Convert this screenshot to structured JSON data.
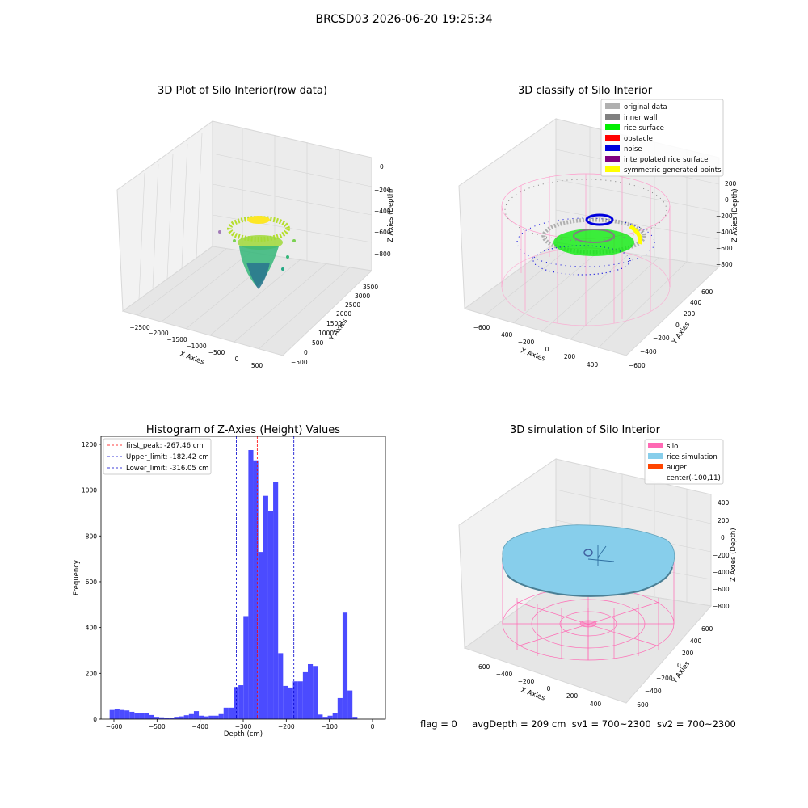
{
  "figure": {
    "suptitle": "BRCSD03 2026-06-20 19:25:34",
    "status_line": {
      "flag": "flag = 0",
      "avg_depth": "avgDepth = 209 cm",
      "sv1": "sv1 = 700~2300",
      "sv2": "sv2 = 700~2300"
    }
  },
  "chart_data": [
    {
      "id": "raw-3d",
      "type": "scatter",
      "title": "3D Plot of Silo Interior(row data)",
      "xlabel": "X Axies",
      "ylabel": "Y Axies",
      "zlabel": "Z Axies (Depth)",
      "x_ticks": [
        "−2500",
        "−2000",
        "−1500",
        "−1000",
        "−500",
        "0",
        "500"
      ],
      "y_ticks": [
        "−500",
        "0",
        "500",
        "1000",
        "1500",
        "2000",
        "2500",
        "3000",
        "3500"
      ],
      "z_ticks": [
        "0",
        "−200",
        "−400",
        "−600",
        "−800"
      ],
      "colormap": [
        "#440154",
        "#31688e",
        "#35b779",
        "#b5de2b",
        "#fde725"
      ]
    },
    {
      "id": "classify-3d",
      "type": "scatter",
      "title": "3D classify of Silo Interior",
      "xlabel": "X Axies",
      "ylabel": "Y Axies",
      "zlabel": "Z Axies (Depth)",
      "x_ticks": [
        "−600",
        "−400",
        "−200",
        "0",
        "200",
        "400"
      ],
      "y_ticks": [
        "−600",
        "−400",
        "−200",
        "0",
        "200",
        "400",
        "600"
      ],
      "z_ticks": [
        "200",
        "0",
        "−200",
        "−400",
        "−600",
        "−800"
      ],
      "legend_position": "top-right",
      "legend": [
        {
          "label": "original data",
          "color": "#b0b0b0"
        },
        {
          "label": "inner wall",
          "color": "#808080"
        },
        {
          "label": "rice surface",
          "color": "#00ee00"
        },
        {
          "label": "obstacle",
          "color": "#ff0000"
        },
        {
          "label": "noise",
          "color": "#0000dd"
        },
        {
          "label": "interpolated rice surface",
          "color": "#800080"
        },
        {
          "label": "symmetric generated points",
          "color": "#ffff00"
        }
      ],
      "wall_color": "#ff9acb"
    },
    {
      "id": "histogram",
      "type": "bar",
      "title": "Histogram of Z-Axies (Height) Values",
      "xlabel": "Depth (cm)",
      "ylabel": "Frequency",
      "xlim": [
        -630,
        30
      ],
      "ylim": [
        0,
        1235
      ],
      "x_ticks": [
        -600,
        -500,
        -400,
        -300,
        -200,
        -100,
        0
      ],
      "y_ticks": [
        0,
        200,
        400,
        600,
        800,
        1000,
        1200
      ],
      "bin_start": -610,
      "bin_width": 11.5,
      "bar_color": "#4b4bff",
      "values": [
        40,
        45,
        40,
        38,
        32,
        25,
        25,
        25,
        18,
        10,
        8,
        6,
        6,
        10,
        12,
        17,
        22,
        35,
        15,
        12,
        15,
        15,
        22,
        50,
        50,
        140,
        148,
        450,
        1175,
        1130,
        730,
        975,
        910,
        1035,
        288,
        145,
        138,
        165,
        165,
        205,
        240,
        232,
        20,
        10,
        15,
        25,
        92,
        465,
        125,
        10
      ],
      "legend_position": "top-left",
      "reference_lines": [
        {
          "label": "first_peak: -267.46 cm",
          "value": -267.46,
          "color": "#ff0000"
        },
        {
          "label": "Upper_limit: -182.42 cm",
          "value": -182.42,
          "color": "#0000cc"
        },
        {
          "label": "Lower_limit: -316.05 cm",
          "value": -316.05,
          "color": "#0000cc"
        }
      ]
    },
    {
      "id": "simulation-3d",
      "type": "scatter",
      "title": "3D simulation of Silo Interior",
      "xlabel": "X Axies",
      "ylabel": "Y Axies",
      "zlabel": "Z Axies (Depth)",
      "x_ticks": [
        "−600",
        "−400",
        "−200",
        "0",
        "200",
        "400"
      ],
      "y_ticks": [
        "−600",
        "−400",
        "−200",
        "0",
        "200",
        "400",
        "600"
      ],
      "z_ticks": [
        "400",
        "200",
        "0",
        "−200",
        "−400",
        "−600",
        "−800"
      ],
      "legend_position": "top-right",
      "legend": [
        {
          "label": "silo",
          "color": "#ff69b4"
        },
        {
          "label": "rice simulation",
          "color": "#87ceeb"
        },
        {
          "label": "auger",
          "color": "#ff4500"
        },
        {
          "label": "center(-100,11)",
          "color": ""
        }
      ]
    }
  ]
}
